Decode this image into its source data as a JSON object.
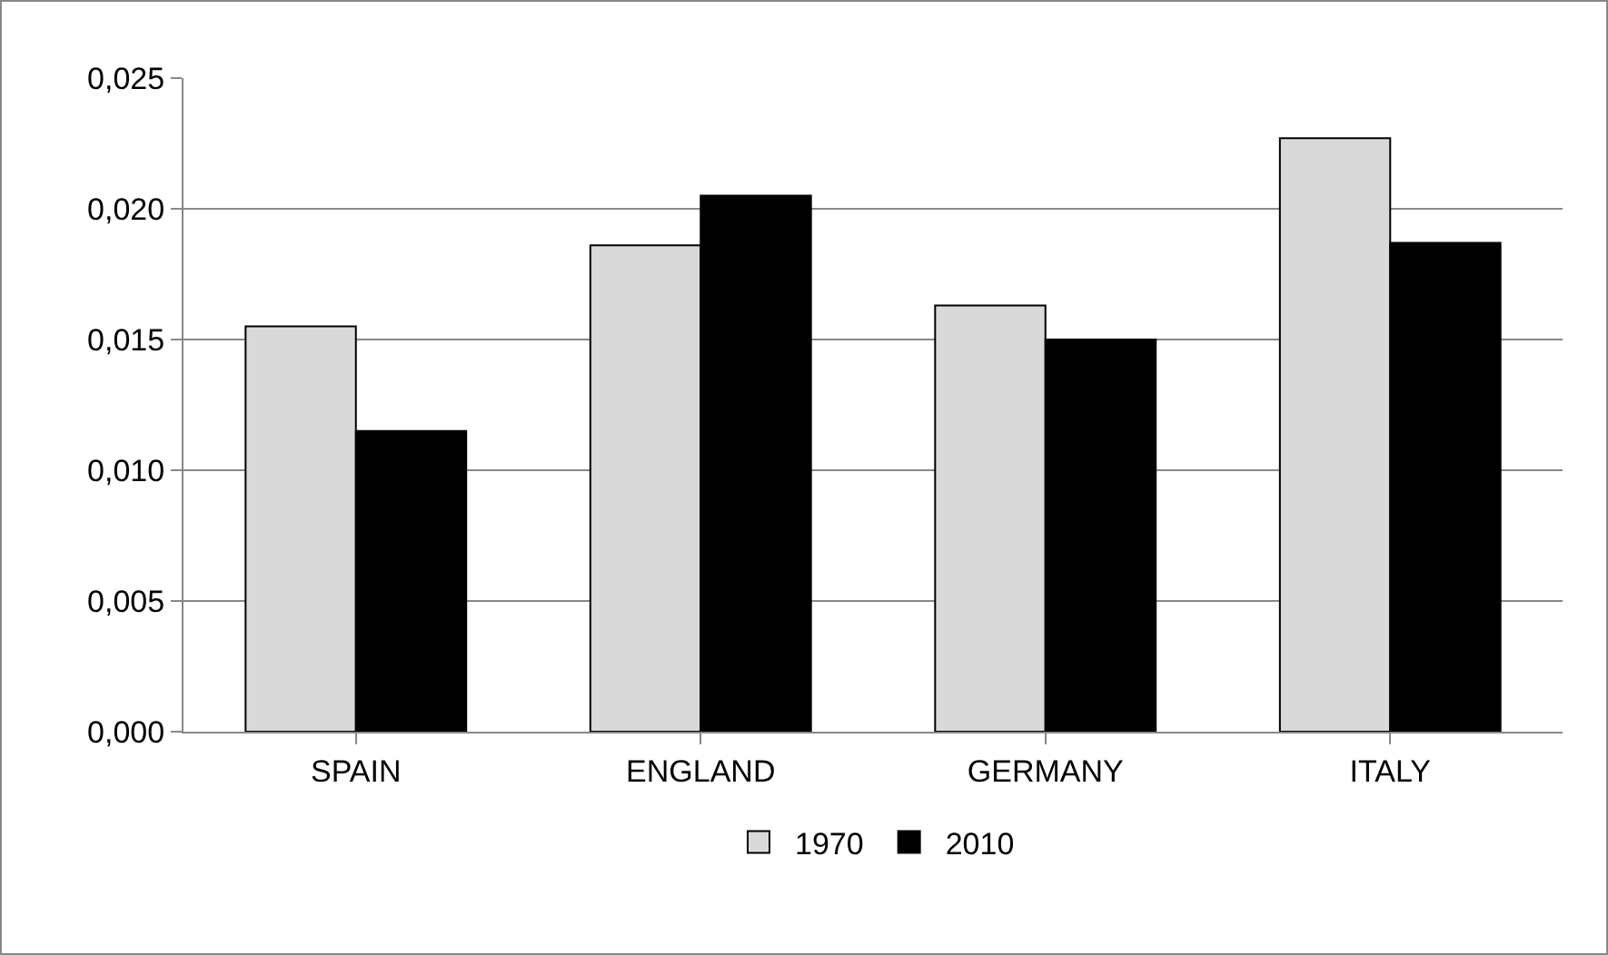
{
  "chart_data": {
    "type": "bar",
    "categories": [
      "SPAIN",
      "ENGLAND",
      "GERMANY",
      "ITALY"
    ],
    "series": [
      {
        "name": "1970",
        "color": "#d9d9d9",
        "values": [
          0.0155,
          0.0186,
          0.0163,
          0.0227
        ]
      },
      {
        "name": "2010",
        "color": "#000000",
        "values": [
          0.0115,
          0.0205,
          0.015,
          0.0187
        ]
      }
    ],
    "ylim": [
      0,
      0.025
    ],
    "yticks": [
      {
        "value": 0,
        "label": "0,000"
      },
      {
        "value": 0.005,
        "label": "0,005"
      },
      {
        "value": 0.01,
        "label": "0,010"
      },
      {
        "value": 0.015,
        "label": "0,015"
      },
      {
        "value": 0.02,
        "label": "0,020"
      },
      {
        "value": 0.025,
        "label": "0,025"
      }
    ],
    "grid": "y",
    "legend": "bottom"
  }
}
